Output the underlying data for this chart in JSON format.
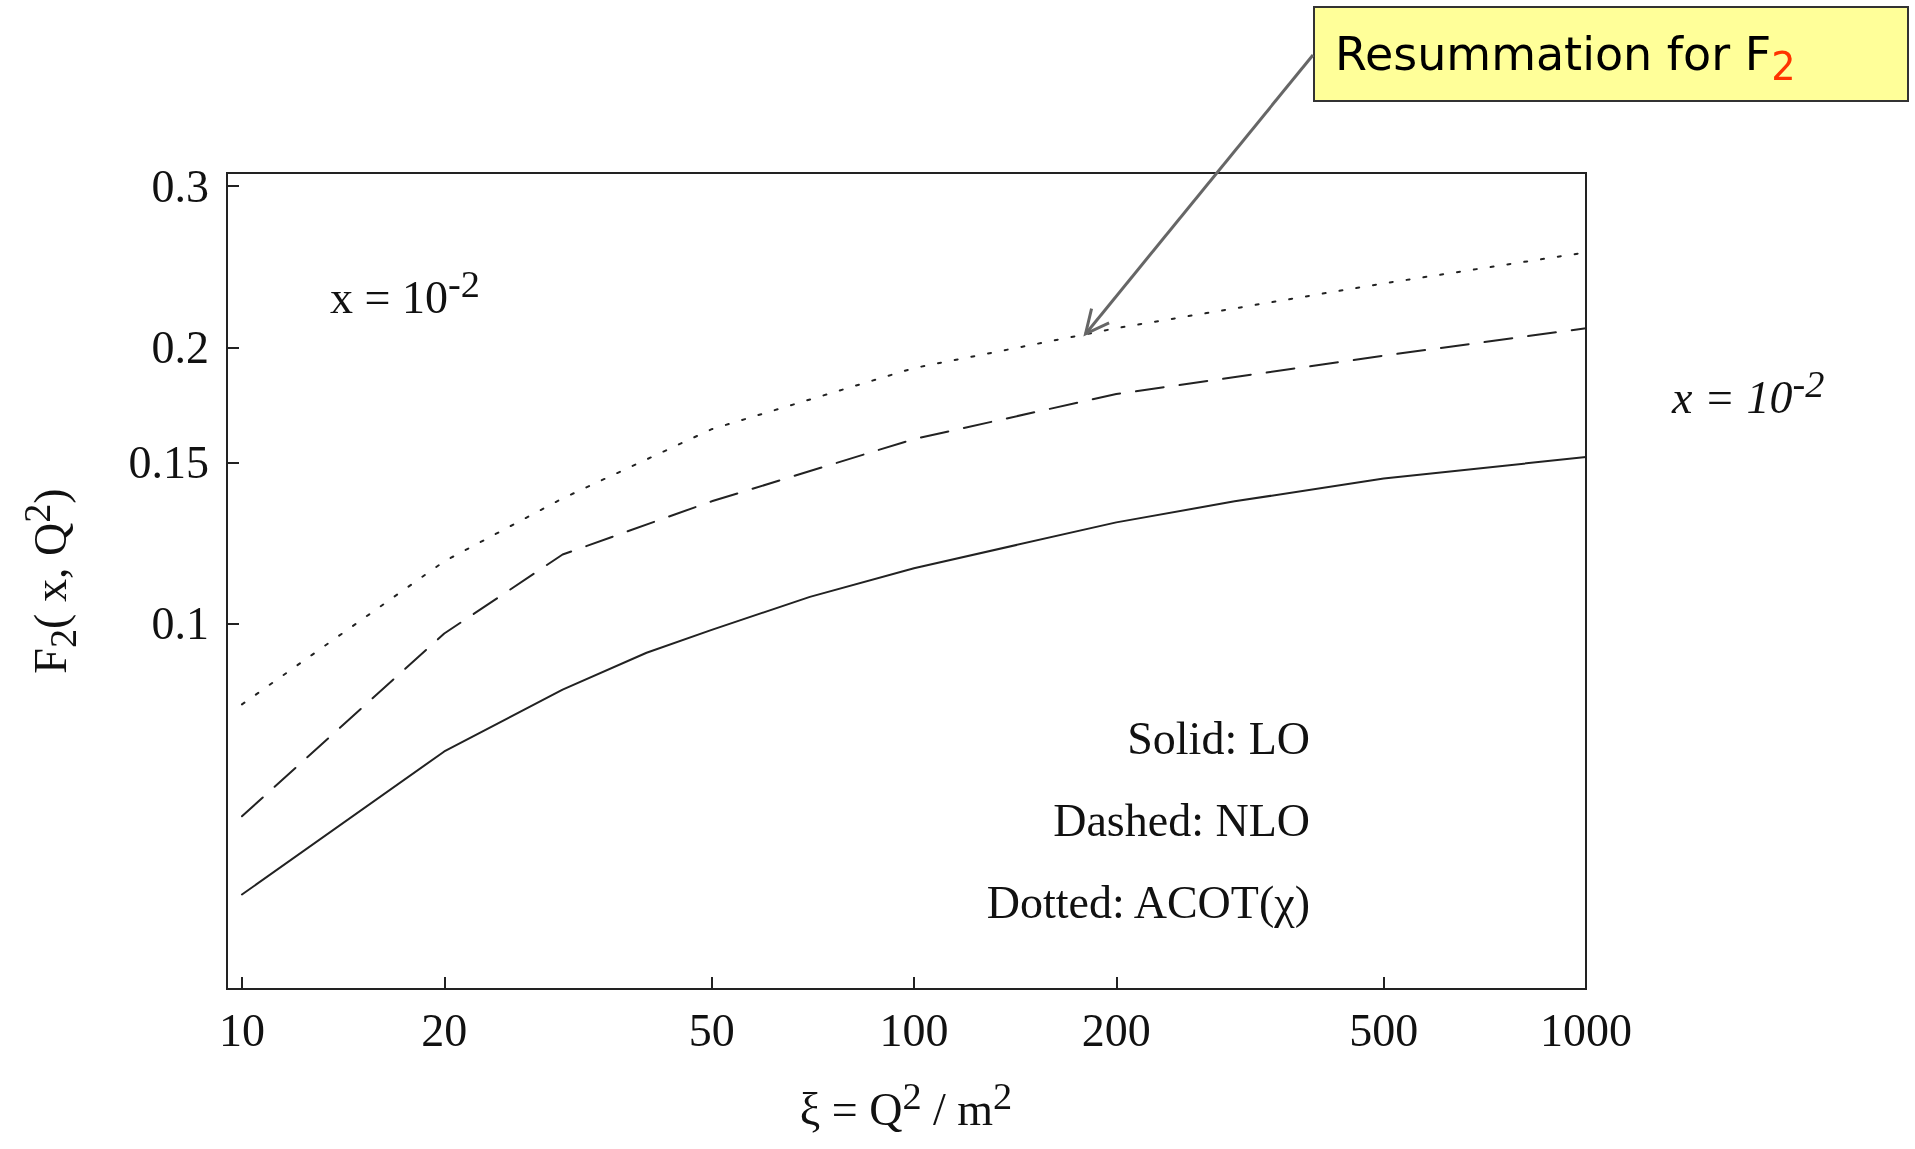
{
  "chart_data": {
    "type": "line",
    "xlabel": "ξ = Q$^{2}$ / m$^{2}$",
    "ylabel": "F$_{2}$( x, Q$^{2}$)",
    "log": "xy",
    "grid": false,
    "marker": "none",
    "xlim": [
      9.5,
      1000
    ],
    "xticks": [
      10,
      20,
      50,
      100,
      200,
      500,
      1000
    ],
    "ylim": [
      0.04,
      0.31
    ],
    "yticks": [
      0.1,
      0.15,
      0.2,
      0.3
    ],
    "series": [
      {
        "color": "#222222",
        "line_style": "solid",
        "x": [
          10,
          20,
          30,
          40,
          50,
          70,
          100,
          200,
          300,
          500,
          1000
        ],
        "values": [
          0.0507,
          0.0726,
          0.0848,
          0.093,
          0.0985,
          0.107,
          0.115,
          0.129,
          0.136,
          0.144,
          0.152
        ]
      },
      {
        "color": "#222222",
        "line_style": "dashed",
        "x": [
          10,
          20,
          30,
          50,
          100,
          200,
          500,
          1000
        ],
        "values": [
          0.0617,
          0.0976,
          0.119,
          0.136,
          0.159,
          0.178,
          0.196,
          0.21
        ]
      },
      {
        "color": "#222222",
        "line_style": "dotted",
        "x": [
          10,
          20,
          30,
          50,
          100,
          200,
          500,
          1000
        ],
        "values": [
          0.0817,
          0.117,
          0.137,
          0.163,
          0.19,
          0.21,
          0.235,
          0.254
        ]
      }
    ],
    "annotations": [
      "x = 10$^{-2}$",
      "Solid:  LO",
      "Dashed:  NLO",
      "Dotted:  ACOT(χ)",
      "x = 10$^{-2}$",
      {
        "text": "Resummation for F$_{2}$",
        "x": 180,
        "y": 0.207
      }
    ]
  }
}
